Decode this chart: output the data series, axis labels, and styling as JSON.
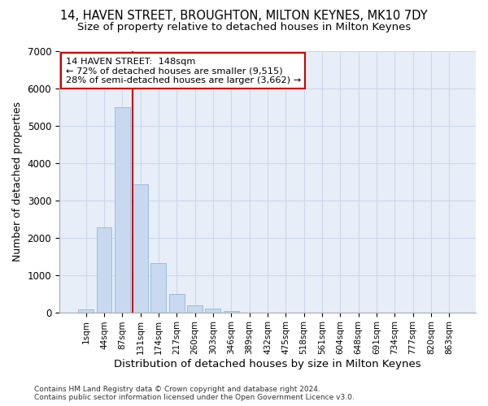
{
  "title_line1": "14, HAVEN STREET, BROUGHTON, MILTON KEYNES, MK10 7DY",
  "title_line2": "Size of property relative to detached houses in Milton Keynes",
  "xlabel": "Distribution of detached houses by size in Milton Keynes",
  "ylabel": "Number of detached properties",
  "footnote": "Contains HM Land Registry data © Crown copyright and database right 2024.\nContains public sector information licensed under the Open Government Licence v3.0.",
  "bar_labels": [
    "1sqm",
    "44sqm",
    "87sqm",
    "131sqm",
    "174sqm",
    "217sqm",
    "260sqm",
    "303sqm",
    "346sqm",
    "389sqm",
    "432sqm",
    "475sqm",
    "518sqm",
    "561sqm",
    "604sqm",
    "648sqm",
    "691sqm",
    "734sqm",
    "777sqm",
    "820sqm",
    "863sqm"
  ],
  "bar_values": [
    70,
    2270,
    5490,
    3420,
    1310,
    490,
    190,
    90,
    40,
    0,
    0,
    0,
    0,
    0,
    0,
    0,
    0,
    0,
    0,
    0,
    0
  ],
  "bar_color": "#c8d8ee",
  "bar_edge_color": "#8fb8e0",
  "vline_x_index": 3,
  "vline_color": "#cc0000",
  "annotation_line1": "14 HAVEN STREET:  148sqm",
  "annotation_line2": "← 72% of detached houses are smaller (9,515)",
  "annotation_line3": "28% of semi-detached houses are larger (3,662) →",
  "annotation_box_color": "#ffffff",
  "annotation_box_edge": "#cc0000",
  "ylim": [
    0,
    7000
  ],
  "yticks": [
    0,
    1000,
    2000,
    3000,
    4000,
    5000,
    6000,
    7000
  ],
  "grid_color": "#ccd8ec",
  "bg_color": "#ffffff",
  "plot_bg_color": "#e8eef8",
  "title_fontsize": 10.5,
  "subtitle_fontsize": 9.5
}
